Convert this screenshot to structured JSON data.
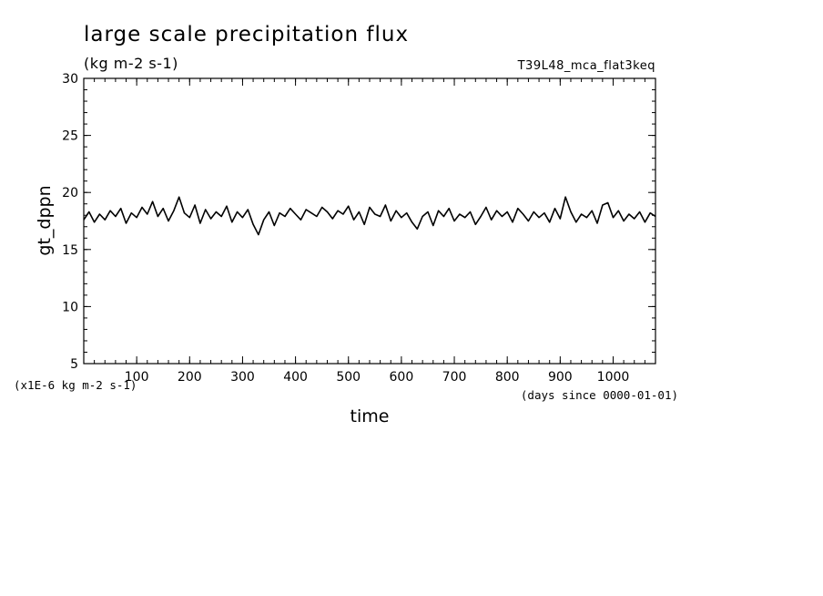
{
  "chart_data": {
    "type": "line",
    "title": "large scale precipitation flux",
    "units": "(kg m-2 s-1)",
    "case_name": "T39L48_mca_flat3keq",
    "xlabel": "time",
    "x_units": "(days since 0000-01-01)",
    "ylabel": "gt_dppn",
    "y_scale_label": "(x1E-6 kg m-2 s-1)",
    "xlim": [
      0,
      1080
    ],
    "ylim": [
      5,
      30
    ],
    "x_ticks": [
      100,
      200,
      300,
      400,
      500,
      600,
      700,
      800,
      900,
      1000
    ],
    "y_ticks": [
      5,
      10,
      15,
      20,
      25,
      30
    ],
    "grid": false,
    "series": [
      {
        "x": [
          0,
          10,
          20,
          30,
          40,
          50,
          60,
          70,
          80,
          90,
          100,
          110,
          120,
          130,
          140,
          150,
          160,
          170,
          180,
          190,
          200,
          210,
          220,
          230,
          240,
          250,
          260,
          270,
          280,
          290,
          300,
          310,
          320,
          330,
          340,
          350,
          360,
          370,
          380,
          390,
          400,
          410,
          420,
          430,
          440,
          450,
          460,
          470,
          480,
          490,
          500,
          510,
          520,
          530,
          540,
          550,
          560,
          570,
          580,
          590,
          600,
          610,
          620,
          630,
          640,
          650,
          660,
          670,
          680,
          690,
          700,
          710,
          720,
          730,
          740,
          750,
          760,
          770,
          780,
          790,
          800,
          810,
          820,
          830,
          840,
          850,
          860,
          870,
          880,
          890,
          900,
          910,
          920,
          930,
          940,
          950,
          960,
          970,
          980,
          990,
          1000,
          1010,
          1020,
          1030,
          1040,
          1050,
          1060,
          1070,
          1080
        ],
        "values": [
          17.6,
          18.3,
          17.4,
          18.1,
          17.6,
          18.4,
          17.9,
          18.6,
          17.3,
          18.2,
          17.8,
          18.7,
          18.1,
          19.2,
          17.9,
          18.6,
          17.5,
          18.4,
          19.6,
          18.2,
          17.8,
          18.9,
          17.3,
          18.5,
          17.7,
          18.3,
          17.9,
          18.8,
          17.4,
          18.3,
          17.8,
          18.5,
          17.2,
          16.3,
          17.6,
          18.3,
          17.1,
          18.2,
          17.9,
          18.6,
          18.1,
          17.6,
          18.5,
          18.2,
          17.9,
          18.7,
          18.3,
          17.7,
          18.4,
          18.1,
          18.8,
          17.6,
          18.3,
          17.2,
          18.7,
          18.1,
          17.9,
          18.9,
          17.5,
          18.4,
          17.8,
          18.2,
          17.4,
          16.8,
          17.9,
          18.3,
          17.1,
          18.4,
          17.9,
          18.6,
          17.5,
          18.1,
          17.8,
          18.3,
          17.2,
          17.9,
          18.7,
          17.6,
          18.4,
          17.9,
          18.3,
          17.4,
          18.6,
          18.1,
          17.5,
          18.3,
          17.8,
          18.2,
          17.4,
          18.6,
          17.7,
          19.6,
          18.3,
          17.4,
          18.1,
          17.8,
          18.4,
          17.3,
          18.9,
          19.1,
          17.8,
          18.4,
          17.5,
          18.1,
          17.7,
          18.3,
          17.4,
          18.2,
          17.9
        ]
      }
    ]
  }
}
